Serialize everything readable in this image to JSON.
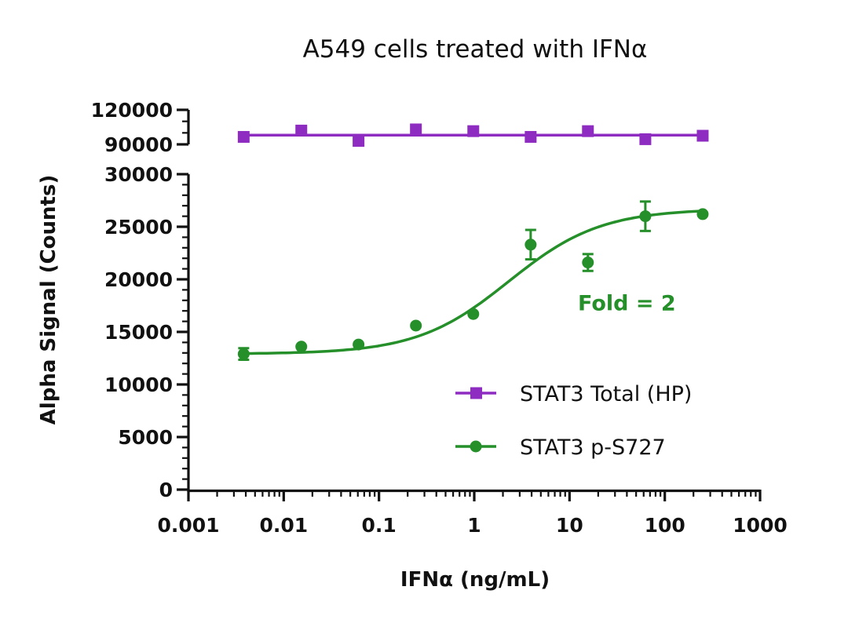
{
  "chart_data": {
    "type": "scatter",
    "title": "A549 cells treated with IFNα",
    "xlabel": "IFNα (ng/mL)",
    "ylabel": "Alpha Signal (Counts)",
    "x_scale": "log10",
    "xlim": [
      0.001,
      1000
    ],
    "x_ticks": [
      0.001,
      0.01,
      0.1,
      1,
      10,
      100,
      1000
    ],
    "x_tick_labels": [
      "0.001",
      "0.01",
      "0.1",
      "1",
      "10",
      "100",
      "1000"
    ],
    "y_axis_break": true,
    "ylim_lower": [
      0,
      30000
    ],
    "ylim_upper": [
      90000,
      120000
    ],
    "y_ticks_lower": [
      0,
      5000,
      10000,
      15000,
      20000,
      25000,
      30000
    ],
    "y_tick_labels_lower": [
      "0",
      "5000",
      "10000",
      "15000",
      "20000",
      "25000",
      "30000"
    ],
    "y_ticks_upper": [
      90000,
      120000
    ],
    "y_tick_labels_upper": [
      "90000",
      "120000"
    ],
    "legend_position": "lower-right",
    "series": [
      {
        "name": "STAT3 Total (HP)",
        "color": "#8E2BC0",
        "marker": "square",
        "x": [
          0.0038,
          0.0153,
          0.061,
          0.244,
          0.977,
          3.91,
          15.6,
          62.5,
          250
        ],
        "y": [
          96500,
          102000,
          93000,
          103000,
          101500,
          96500,
          101500,
          94500,
          97500
        ],
        "fit": "flat",
        "fit_value": 98000
      },
      {
        "name": "STAT3 p-S727",
        "color": "#258F2A",
        "marker": "circle",
        "x": [
          0.0038,
          0.0153,
          0.061,
          0.244,
          0.977,
          3.91,
          15.6,
          62.5,
          250
        ],
        "y": [
          12900,
          13600,
          13800,
          15600,
          16700,
          23300,
          21600,
          26000,
          26200
        ],
        "err": [
          550,
          0,
          0,
          0,
          0,
          1400,
          800,
          1400,
          0
        ],
        "fit": "4PL",
        "fit_params": {
          "bottom": 12900,
          "top": 26700,
          "ec50": 2.3,
          "hill": 0.9
        }
      }
    ],
    "annotations": [
      {
        "text": "Fold = 2",
        "color": "#258F2A",
        "x": 40,
        "y": 17800
      }
    ]
  }
}
